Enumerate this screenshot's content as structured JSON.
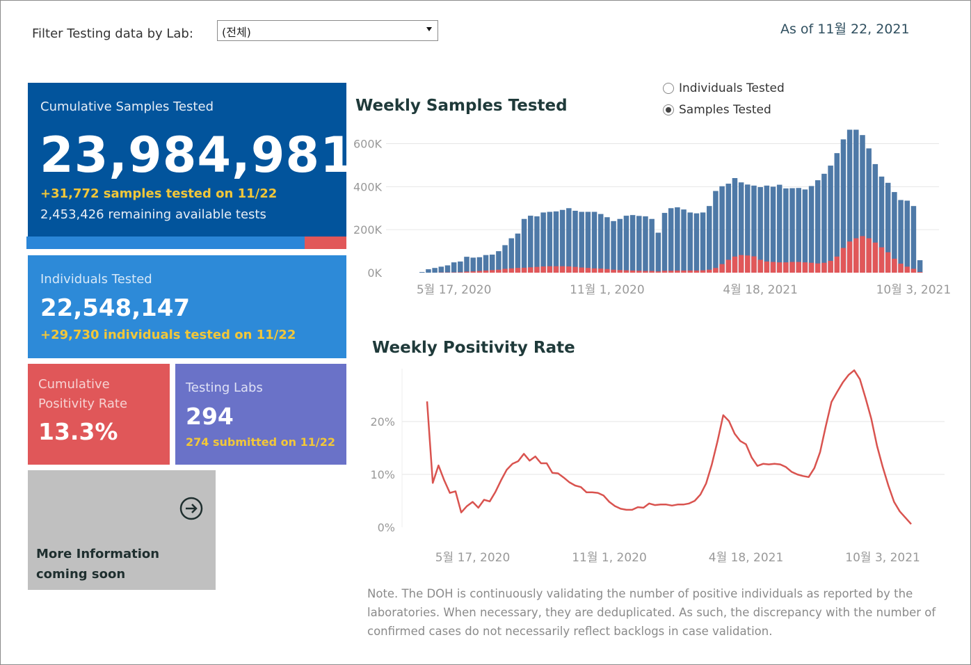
{
  "filter": {
    "label": "Filter Testing data by Lab:",
    "selected": "(전체)"
  },
  "as_of": "As of 11월 22, 2021",
  "cumulative": {
    "title": "Cumulative Samples Tested",
    "value": "23,984,981",
    "today": "+31,772 samples tested on 11/22",
    "remaining": "2,453,426 remaining available tests",
    "used_fraction": 0.87
  },
  "individuals": {
    "title": "Individuals Tested",
    "value": "22,548,147",
    "today": "+29,730  individuals  tested on 11/22"
  },
  "positivity": {
    "title": "Cumulative Positivity Rate",
    "value": "13.3%"
  },
  "labs": {
    "title": "Testing Labs",
    "value": "294",
    "submitted": "274 submitted on 11/22"
  },
  "more_info": {
    "text": "More Information coming soon",
    "icon": "arrow-right-circle-icon"
  },
  "toggle": {
    "options": [
      "Individuals Tested",
      "Samples Tested"
    ],
    "selected": "Samples Tested"
  },
  "colors": {
    "total": "#4e79a7",
    "positive": "#e15759",
    "line": "#d9534f"
  },
  "note": "Note. The DOH is continuously validating the number of positive individuals as reported by the laboratories. When necessary, they are deduplicated. As such, the discrepancy with the number of confirmed cases do not necessarily reflect backlogs in case validation.",
  "chart_data": [
    {
      "type": "bar",
      "title": "Weekly Samples Tested",
      "yticks": [
        "600K",
        "400K",
        "200K",
        "0K"
      ],
      "ytick_values": [
        600000,
        400000,
        200000,
        0
      ],
      "xticks": [
        "5월 17, 2020",
        "11월 1, 2020",
        "4월 18, 2021",
        "10월 3, 2021"
      ],
      "xtick_index": [
        5,
        29,
        53,
        77
      ],
      "ylim": [
        0,
        660000
      ],
      "series": [
        {
          "name": "Total",
          "values": [
            3000,
            16000,
            22000,
            28000,
            34000,
            48000,
            52000,
            74000,
            70000,
            72000,
            82000,
            84000,
            100000,
            128000,
            160000,
            182000,
            250000,
            265000,
            262000,
            280000,
            283000,
            285000,
            292000,
            300000,
            288000,
            283000,
            283000,
            283000,
            273000,
            258000,
            240000,
            250000,
            265000,
            268000,
            264000,
            262000,
            250000,
            186000,
            278000,
            300000,
            304000,
            294000,
            280000,
            276000,
            280000,
            310000,
            380000,
            402000,
            414000,
            440000,
            420000,
            410000,
            405000,
            398000,
            405000,
            400000,
            409000,
            392000,
            393000,
            394000,
            387000,
            403000,
            430000,
            460000,
            498000,
            556000,
            620000,
            665000,
            665000,
            640000,
            578000,
            505000,
            447000,
            418000,
            375000,
            338000,
            335000,
            310000,
            58000
          ]
        },
        {
          "name": "Positive",
          "values": [
            0,
            0,
            0,
            1000,
            1200,
            1500,
            2000,
            5000,
            6000,
            8000,
            10000,
            12000,
            14000,
            18000,
            20000,
            22000,
            23000,
            25000,
            27000,
            29000,
            30000,
            30000,
            30000,
            29000,
            27000,
            24000,
            22000,
            20000,
            19000,
            17000,
            14000,
            12000,
            11000,
            10000,
            9000,
            8000,
            8000,
            6000,
            9000,
            9000,
            10000,
            10000,
            10000,
            10000,
            11000,
            14000,
            22000,
            40000,
            60000,
            75000,
            82000,
            80000,
            76000,
            60000,
            52000,
            50000,
            48000,
            48000,
            50000,
            50000,
            48000,
            46000,
            43000,
            46000,
            55000,
            75000,
            115000,
            145000,
            160000,
            170000,
            160000,
            140000,
            118000,
            95000,
            65000,
            42000,
            28000,
            18000,
            3000
          ]
        }
      ]
    },
    {
      "type": "line",
      "title": "Weekly Positivity Rate",
      "yticks": [
        "20%",
        "10%",
        "0%"
      ],
      "ytick_values": [
        20,
        10,
        0
      ],
      "xticks": [
        "5월 17, 2020",
        "11월 1, 2020",
        "4월 18, 2021",
        "10월 3, 2021"
      ],
      "xtick_index": [
        8,
        32,
        56,
        80
      ],
      "ylim": [
        0,
        30
      ],
      "series": [
        {
          "name": "Positivity Rate",
          "values": [
            23.8,
            8.4,
            11.7,
            8.9,
            6.5,
            6.8,
            2.8,
            4.0,
            4.8,
            3.7,
            5.2,
            4.9,
            6.7,
            8.9,
            10.9,
            12.0,
            12.5,
            13.9,
            12.6,
            13.4,
            12.1,
            12.1,
            10.3,
            10.2,
            9.4,
            8.5,
            7.9,
            7.6,
            6.6,
            6.6,
            6.5,
            6.0,
            4.8,
            4.0,
            3.5,
            3.3,
            3.3,
            3.8,
            3.7,
            4.5,
            4.2,
            4.3,
            4.3,
            4.1,
            4.3,
            4.3,
            4.5,
            5.0,
            6.2,
            8.3,
            11.9,
            16.3,
            21.2,
            20.1,
            17.7,
            16.3,
            15.7,
            13.2,
            11.6,
            12.0,
            11.9,
            12.0,
            11.9,
            11.4,
            10.5,
            10.0,
            9.7,
            9.5,
            11.2,
            14.2,
            19.1,
            23.7,
            25.6,
            27.4,
            28.8,
            29.7,
            28.0,
            24.4,
            20.5,
            15.4,
            11.4,
            7.9,
            4.8,
            3.0,
            1.8,
            0.6
          ]
        }
      ]
    }
  ]
}
